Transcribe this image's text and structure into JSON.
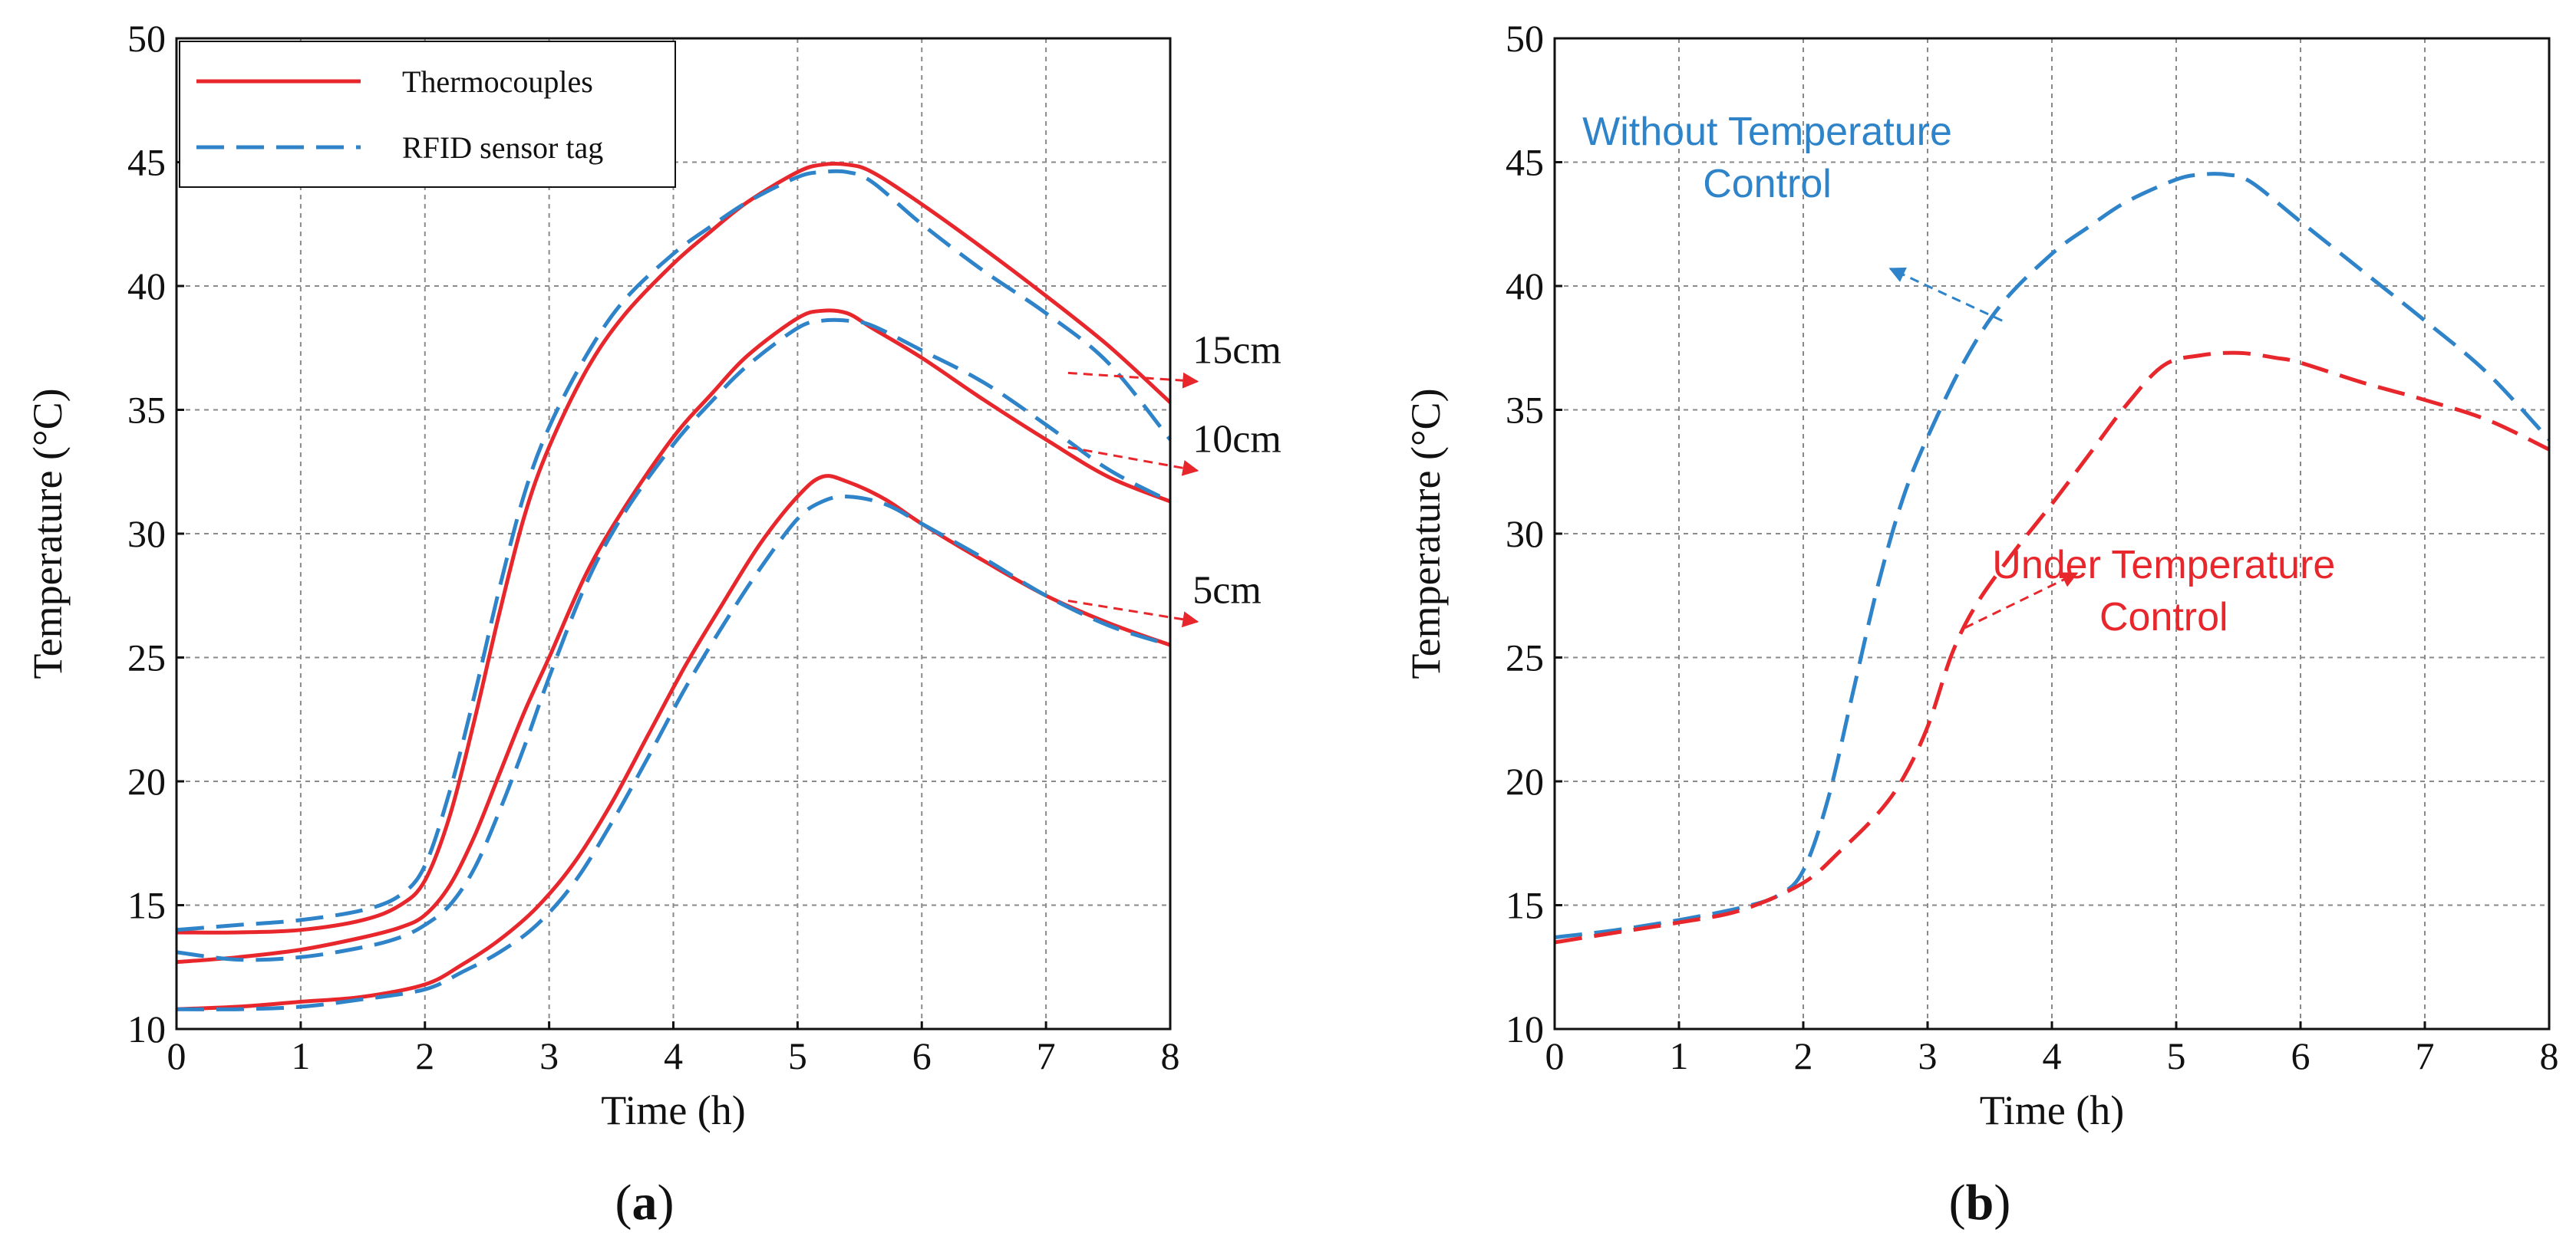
{
  "colors": {
    "thermo": "#e8272d",
    "rfid": "#2f84c9",
    "control": "#e8272d",
    "nocontrol": "#2f84c9"
  },
  "captions": [
    {
      "open": "(",
      "letter": "a",
      "close": ")"
    },
    {
      "open": "(",
      "letter": "b",
      "close": ")"
    }
  ],
  "chart_data": [
    {
      "id": "a",
      "type": "line",
      "xlabel": "Time (h)",
      "ylabel": "Temperature (°C)",
      "xlim": [
        0,
        8
      ],
      "ylim": [
        10,
        50
      ],
      "xticks": [
        0,
        1,
        2,
        3,
        4,
        5,
        6,
        7,
        8
      ],
      "yticks": [
        10,
        15,
        20,
        25,
        30,
        35,
        40,
        45,
        50
      ],
      "grid": true,
      "legend_position": "top-left",
      "legend": [
        {
          "label": "Thermocouples",
          "style": "solid",
          "color": "#e8272d"
        },
        {
          "label": "RFID sensor tag",
          "style": "dashed",
          "color": "#2f84c9"
        }
      ],
      "annotations": [
        {
          "text": "15cm",
          "at": [
            7.6,
            35.9
          ],
          "from": [
            7.4,
            36.8
          ]
        },
        {
          "text": "10cm",
          "at": [
            7.6,
            32.3
          ],
          "from": [
            7.4,
            33.8
          ]
        },
        {
          "text": "5cm",
          "at": [
            7.6,
            26.2
          ],
          "from": [
            7.4,
            27.6
          ]
        }
      ],
      "series": [
        {
          "name": "Thermocouples 15cm",
          "style": "solid",
          "color": "#e8272d",
          "x": [
            0,
            0.5,
            1,
            1.5,
            1.8,
            2,
            2.2,
            2.4,
            2.6,
            2.8,
            3,
            3.3,
            3.6,
            4,
            4.3,
            4.6,
            5,
            5.2,
            5.4,
            5.6,
            6,
            6.5,
            7,
            7.5,
            8
          ],
          "y": [
            13.9,
            13.9,
            14.0,
            14.4,
            15.0,
            16.0,
            18.6,
            22.5,
            26.8,
            30.7,
            33.5,
            36.6,
            38.8,
            40.9,
            42.2,
            43.4,
            44.6,
            44.9,
            44.9,
            44.6,
            43.3,
            41.5,
            39.6,
            37.6,
            35.3
          ]
        },
        {
          "name": "RFID sensor tag 15cm",
          "style": "dashed",
          "color": "#2f84c9",
          "x": [
            0,
            0.5,
            1,
            1.5,
            1.8,
            2,
            2.2,
            2.4,
            2.6,
            2.8,
            3,
            3.3,
            3.6,
            4,
            4.3,
            4.6,
            5,
            5.2,
            5.4,
            5.6,
            6,
            6.5,
            7,
            7.5,
            8
          ],
          "y": [
            14.0,
            14.2,
            14.4,
            14.8,
            15.4,
            16.6,
            19.6,
            23.5,
            27.8,
            31.6,
            34.3,
            37.2,
            39.4,
            41.3,
            42.4,
            43.4,
            44.4,
            44.6,
            44.6,
            44.2,
            42.5,
            40.6,
            38.9,
            36.9,
            33.8
          ]
        },
        {
          "name": "Thermocouples 10cm",
          "style": "solid",
          "color": "#e8272d",
          "x": [
            0,
            0.5,
            1,
            1.5,
            1.8,
            2,
            2.2,
            2.4,
            2.6,
            2.8,
            3,
            3.3,
            3.6,
            4,
            4.3,
            4.6,
            5,
            5.2,
            5.4,
            5.6,
            6,
            6.5,
            7,
            7.5,
            8
          ],
          "y": [
            12.7,
            12.9,
            13.2,
            13.7,
            14.1,
            14.6,
            15.8,
            17.8,
            20.3,
            22.8,
            25.0,
            28.4,
            31.0,
            33.9,
            35.6,
            37.2,
            38.7,
            39.0,
            38.9,
            38.3,
            37.1,
            35.4,
            33.8,
            32.3,
            31.3
          ]
        },
        {
          "name": "RFID sensor tag 10cm",
          "style": "dashed",
          "color": "#2f84c9",
          "x": [
            0,
            0.5,
            1,
            1.5,
            1.8,
            2,
            2.2,
            2.4,
            2.6,
            2.8,
            3,
            3.3,
            3.6,
            4,
            4.3,
            4.6,
            5,
            5.2,
            5.4,
            5.6,
            6,
            6.5,
            7,
            7.5,
            8
          ],
          "y": [
            13.1,
            12.8,
            12.9,
            13.3,
            13.7,
            14.2,
            15.0,
            16.5,
            18.8,
            21.4,
            24.2,
            28.0,
            30.8,
            33.6,
            35.3,
            36.8,
            38.3,
            38.6,
            38.6,
            38.4,
            37.4,
            36.1,
            34.4,
            32.6,
            31.3
          ]
        },
        {
          "name": "Thermocouples 5cm",
          "style": "solid",
          "color": "#e8272d",
          "x": [
            0,
            0.5,
            1,
            1.5,
            2,
            2.3,
            2.6,
            2.9,
            3.2,
            3.5,
            3.8,
            4.1,
            4.4,
            4.7,
            5,
            5.2,
            5.4,
            5.7,
            6,
            6.5,
            7,
            7.5,
            8
          ],
          "y": [
            10.8,
            10.9,
            11.1,
            11.3,
            11.8,
            12.6,
            13.6,
            14.9,
            16.7,
            19.1,
            21.9,
            24.7,
            27.2,
            29.6,
            31.5,
            32.3,
            32.1,
            31.4,
            30.4,
            28.9,
            27.5,
            26.4,
            25.5
          ]
        },
        {
          "name": "RFID sensor tag 5cm",
          "style": "dashed",
          "color": "#2f84c9",
          "x": [
            0,
            0.5,
            1,
            1.5,
            2,
            2.3,
            2.6,
            2.9,
            3.2,
            3.5,
            3.8,
            4.1,
            4.4,
            4.7,
            5,
            5.2,
            5.4,
            5.7,
            6,
            6.5,
            7,
            7.5,
            8
          ],
          "y": [
            10.8,
            10.8,
            10.9,
            11.2,
            11.6,
            12.3,
            13.1,
            14.2,
            15.9,
            18.3,
            21.0,
            23.8,
            26.3,
            28.6,
            30.6,
            31.3,
            31.5,
            31.2,
            30.4,
            29.0,
            27.5,
            26.3,
            25.5
          ]
        }
      ]
    },
    {
      "id": "b",
      "type": "line",
      "xlabel": "Time (h)",
      "ylabel": "Temperature (°C)",
      "xlim": [
        0,
        8
      ],
      "ylim": [
        10,
        50
      ],
      "xticks": [
        0,
        1,
        2,
        3,
        4,
        5,
        6,
        7,
        8
      ],
      "yticks": [
        10,
        15,
        20,
        25,
        30,
        35,
        40,
        45,
        50
      ],
      "grid": true,
      "annotations": [
        {
          "lines": [
            "Without Temperature",
            "Control"
          ],
          "color": "#2f84c9",
          "arrow_from": [
            3.6,
            38.6
          ],
          "arrow_to": [
            2.7,
            40.7
          ]
        },
        {
          "lines": [
            "Under Temperature",
            "Control"
          ],
          "color": "#e8272d",
          "arrow_from": [
            3.3,
            26.2
          ],
          "arrow_to": [
            4.2,
            28.4
          ]
        }
      ],
      "series": [
        {
          "name": "Without Temperature Control",
          "style": "dashed",
          "color": "#2f84c9",
          "x": [
            0,
            0.5,
            1,
            1.5,
            1.8,
            2,
            2.2,
            2.4,
            2.6,
            2.8,
            3,
            3.3,
            3.6,
            4,
            4.3,
            4.6,
            5,
            5.2,
            5.4,
            5.6,
            6,
            6.5,
            7,
            7.5,
            8
          ],
          "y": [
            13.7,
            14.0,
            14.4,
            14.9,
            15.4,
            16.4,
            19.3,
            23.6,
            27.9,
            31.4,
            33.9,
            37.0,
            39.3,
            41.3,
            42.4,
            43.4,
            44.3,
            44.5,
            44.5,
            44.2,
            42.6,
            40.6,
            38.6,
            36.5,
            33.8
          ]
        },
        {
          "name": "Under Temperature Control",
          "style": "dashed",
          "color": "#e8272d",
          "x": [
            0,
            0.5,
            1,
            1.5,
            2,
            2.3,
            2.6,
            2.8,
            3,
            3.2,
            3.4,
            3.7,
            4,
            4.3,
            4.6,
            4.9,
            5.2,
            5.5,
            5.8,
            6,
            6.5,
            7,
            7.5,
            8
          ],
          "y": [
            13.5,
            13.9,
            14.3,
            14.8,
            15.9,
            17.2,
            18.7,
            20.1,
            22.2,
            25.2,
            27.2,
            29.3,
            31.2,
            33.2,
            35.2,
            36.8,
            37.2,
            37.3,
            37.1,
            36.9,
            36.1,
            35.4,
            34.6,
            33.4
          ]
        }
      ]
    }
  ]
}
